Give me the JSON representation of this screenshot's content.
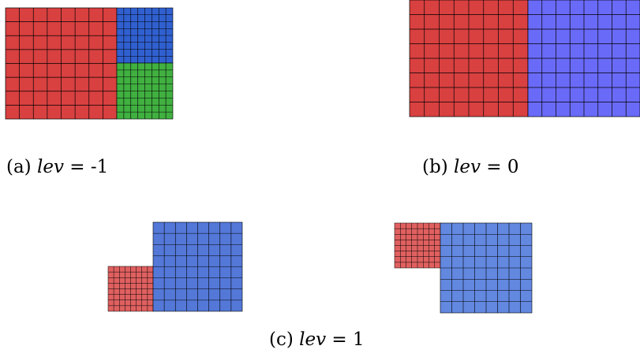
{
  "captions": {
    "a": {
      "prefix": "(a) ",
      "var": "lev",
      "rest": " = -1"
    },
    "b": {
      "prefix": "(b) ",
      "var": "lev",
      "rest": " = 0"
    },
    "c": {
      "prefix": "(c) ",
      "var": "lev",
      "rest": " = 1"
    }
  },
  "colors": {
    "red": "#d94040",
    "red_light": "#e06060",
    "blue_dark": "#3060d0",
    "blue_violet": "#6a6af8",
    "blue_mid": "#5478d8",
    "blue_light": "#6288e0",
    "green": "#40b040",
    "grid_line": "#000000"
  },
  "panels": [
    "lev-minus-1",
    "lev-0",
    "lev-1-left",
    "lev-1-right"
  ]
}
